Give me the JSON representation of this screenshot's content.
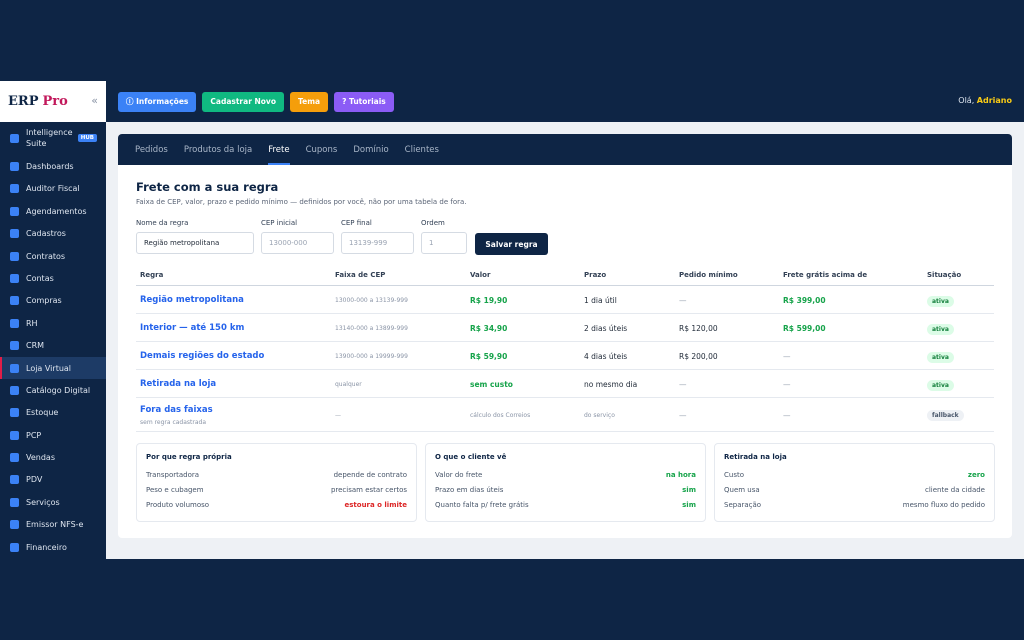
{
  "brand": {
    "name": "ERP",
    "accent": "Pro",
    "collapse": "«"
  },
  "sidebar": {
    "items": [
      {
        "label": "Intelligence Suite",
        "badge": "HUB"
      },
      {
        "label": "Dashboards"
      },
      {
        "label": "Auditor Fiscal"
      },
      {
        "label": "Agendamentos"
      },
      {
        "label": "Cadastros"
      },
      {
        "label": "Contratos"
      },
      {
        "label": "Contas"
      },
      {
        "label": "Compras"
      },
      {
        "label": "RH"
      },
      {
        "label": "CRM"
      },
      {
        "label": "Loja Virtual",
        "active": true
      },
      {
        "label": "Catálogo Digital"
      },
      {
        "label": "Estoque"
      },
      {
        "label": "PCP"
      },
      {
        "label": "Vendas"
      },
      {
        "label": "PDV"
      },
      {
        "label": "Serviços"
      },
      {
        "label": "Emissor NFS-e"
      },
      {
        "label": "Financeiro"
      }
    ]
  },
  "topbar": {
    "buttons": [
      {
        "label": "ⓘ Informações",
        "color": "#3b82f6"
      },
      {
        "label": "Cadastrar Novo",
        "color": "#10b981"
      },
      {
        "label": "Tema",
        "color": "#f59e0b"
      },
      {
        "label": "? Tutoriais",
        "color": "#8b5cf6"
      }
    ],
    "greeting": "Olá,",
    "user": "Adriano"
  },
  "tabs": [
    "Pedidos",
    "Produtos da loja",
    "Frete",
    "Cupons",
    "Domínio",
    "Clientes"
  ],
  "form": {
    "title": "Frete com a sua regra",
    "subtitle": "Faixa de CEP, valor, prazo e pedido mínimo — definidos por você, não por uma tabela de fora.",
    "name_label": "Nome da regra",
    "name_value": "Região metropolitana",
    "cep_start_label": "CEP inicial",
    "cep_start_placeholder": "13000-000",
    "cep_end_label": "CEP final",
    "cep_end_placeholder": "13139-999",
    "order_label": "Ordem",
    "order_placeholder": "1",
    "save_label": "Salvar regra"
  },
  "table": {
    "headers": [
      "Regra",
      "Faixa de CEP",
      "Valor",
      "Prazo",
      "Pedido mínimo",
      "Frete grátis acima de",
      "Situação"
    ],
    "rows": [
      {
        "rule": "Região metropolitana",
        "range": "13000-000 a 13139-999",
        "value": "R$ 19,90",
        "term": "1 dia útil",
        "min": "—",
        "free": "R$ 399,00",
        "status": "ativa"
      },
      {
        "rule": "Interior — até 150 km",
        "range": "13140-000 a 13899-999",
        "value": "R$ 34,90",
        "term": "2 dias úteis",
        "min": "R$ 120,00",
        "free": "R$ 599,00",
        "status": "ativa"
      },
      {
        "rule": "Demais regiões do estado",
        "range": "13900-000 a 19999-999",
        "value": "R$ 59,90",
        "term": "4 dias úteis",
        "min": "R$ 200,00",
        "free": "—",
        "status": "ativa"
      },
      {
        "rule": "Retirada na loja",
        "range": "qualquer",
        "value": "sem custo",
        "term": "no mesmo dia",
        "min": "—",
        "free": "—",
        "status": "ativa"
      },
      {
        "rule": "Fora das faixas",
        "note": "sem regra cadastrada",
        "range": "—",
        "value": "cálculo dos Correios",
        "term": "do serviço",
        "min": "—",
        "free": "—",
        "status": "fallback"
      }
    ]
  },
  "boxes": [
    {
      "title": "Por que regra própria",
      "rows": [
        {
          "label": "Transportadora",
          "value": "depende de contrato"
        },
        {
          "label": "Peso e cubagem",
          "value": "precisam estar certos"
        },
        {
          "label": "Produto volumoso",
          "value": "estoura o limite"
        }
      ]
    },
    {
      "title": "O que o cliente vê",
      "rows": [
        {
          "label": "Valor do frete",
          "value": "na hora"
        },
        {
          "label": "Prazo em dias úteis",
          "value": "sim"
        },
        {
          "label": "Quanto falta p/ frete grátis",
          "value": "sim"
        }
      ]
    },
    {
      "title": "Retirada na loja",
      "rows": [
        {
          "label": "Custo",
          "value": "zero"
        },
        {
          "label": "Quem usa",
          "value": "cliente da cidade"
        },
        {
          "label": "Separação",
          "value": "mesmo fluxo do pedido"
        }
      ]
    }
  ]
}
